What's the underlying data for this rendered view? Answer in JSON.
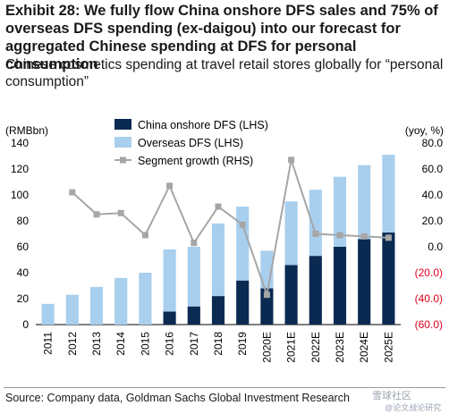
{
  "header": {
    "title": "Exhibit 28: We fully flow China onshore DFS sales and 75% of overseas DFS spending (ex-daigou) into our forecast for aggregated Chinese spending at DFS for personal consumption",
    "subtitle": "Chinese cosmetics spending at travel retail stores globally for “personal consumption”"
  },
  "footer": {
    "source": "Source: Company data, Goldman Sachs Global Investment Research",
    "watermark": "雪球社区",
    "watermark_sub": "@论文战论研究"
  },
  "chart_data": {
    "type": "bar",
    "stacked": true,
    "categories": [
      "2011",
      "2012",
      "2013",
      "2014",
      "2015",
      "2016",
      "2017",
      "2018",
      "2019",
      "2020E",
      "2021E",
      "2022E",
      "2023E",
      "2024E",
      "2025E"
    ],
    "series": [
      {
        "name": "China onshore DFS (LHS)",
        "kind": "bar",
        "axis": "left",
        "color": "#0b2a52",
        "values": [
          0,
          0,
          0,
          0,
          0,
          10,
          14,
          22,
          34,
          28,
          46,
          53,
          60,
          66,
          71
        ]
      },
      {
        "name": "Overseas DFS (LHS)",
        "kind": "bar",
        "axis": "left",
        "color": "#a9cfee",
        "values": [
          16,
          23,
          29,
          36,
          40,
          48,
          46,
          56,
          57,
          29,
          49,
          51,
          54,
          57,
          60
        ]
      },
      {
        "name": "Segment growth (RHS)",
        "kind": "line",
        "axis": "right",
        "color": "#a6a6a6",
        "values": [
          null,
          42,
          25,
          26,
          9,
          47,
          3,
          31,
          17,
          -37,
          67,
          10,
          9,
          8,
          7
        ]
      }
    ],
    "left_axis": {
      "label": "(RMBbn)",
      "min": 0,
      "max": 140,
      "ticks": [
        "0",
        "20",
        "40",
        "60",
        "80",
        "100",
        "120",
        "140"
      ]
    },
    "right_axis": {
      "label": "(yoy, %)",
      "min": -60,
      "max": 80,
      "ticks": [
        "(60.0)",
        "(40.0)",
        "(20.0)",
        "0.0",
        "20.0",
        "40.0",
        "60.0",
        "80.0"
      ],
      "negative_color": "#e0001b"
    },
    "legend": {
      "position": "top-center"
    }
  }
}
